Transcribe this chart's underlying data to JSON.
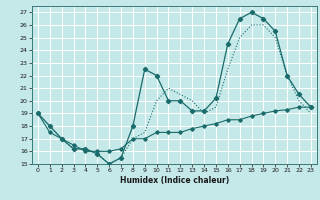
{
  "title": "",
  "xlabel": "Humidex (Indice chaleur)",
  "background_color": "#c5e8e8",
  "grid_color": "#ffffff",
  "line_color": "#1a6b6b",
  "xlim": [
    -0.5,
    23.5
  ],
  "ylim": [
    15,
    27.5
  ],
  "yticks": [
    15,
    16,
    17,
    18,
    19,
    20,
    21,
    22,
    23,
    24,
    25,
    26,
    27
  ],
  "xticks": [
    0,
    1,
    2,
    3,
    4,
    5,
    6,
    7,
    8,
    9,
    10,
    11,
    12,
    13,
    14,
    15,
    16,
    17,
    18,
    19,
    20,
    21,
    22,
    23
  ],
  "line1_x": [
    0,
    1,
    2,
    3,
    4,
    5,
    6,
    7,
    8,
    9,
    10,
    11,
    12,
    13,
    14,
    15,
    16,
    17,
    18,
    19,
    20,
    21,
    22,
    23
  ],
  "line1_y": [
    19,
    18,
    17,
    16.2,
    16.2,
    15.8,
    15,
    15.5,
    18,
    22.5,
    22,
    20,
    20,
    19.2,
    19.2,
    20.2,
    24.5,
    26.5,
    27,
    26.5,
    25.5,
    22,
    20.5,
    19.5
  ],
  "line2_x": [
    0,
    1,
    2,
    3,
    4,
    5,
    6,
    7,
    8,
    9,
    10,
    11,
    12,
    13,
    14,
    15,
    16,
    17,
    18,
    19,
    20,
    21,
    22,
    23
  ],
  "line2_y": [
    19,
    18,
    17,
    16.2,
    16.2,
    15.8,
    15,
    15.5,
    17,
    17.5,
    20,
    21,
    20.5,
    20,
    19,
    19.5,
    22.5,
    25,
    26,
    26,
    25,
    22,
    20,
    19
  ],
  "line3_x": [
    0,
    1,
    2,
    3,
    4,
    5,
    6,
    7,
    8,
    9,
    10,
    11,
    12,
    13,
    14,
    15,
    16,
    17,
    18,
    19,
    20,
    21,
    22,
    23
  ],
  "line3_y": [
    19,
    17.5,
    17,
    16.5,
    16,
    16,
    16,
    16.2,
    17,
    17,
    17.5,
    17.5,
    17.5,
    17.8,
    18,
    18.2,
    18.5,
    18.5,
    18.8,
    19,
    19.2,
    19.3,
    19.5,
    19.5
  ]
}
